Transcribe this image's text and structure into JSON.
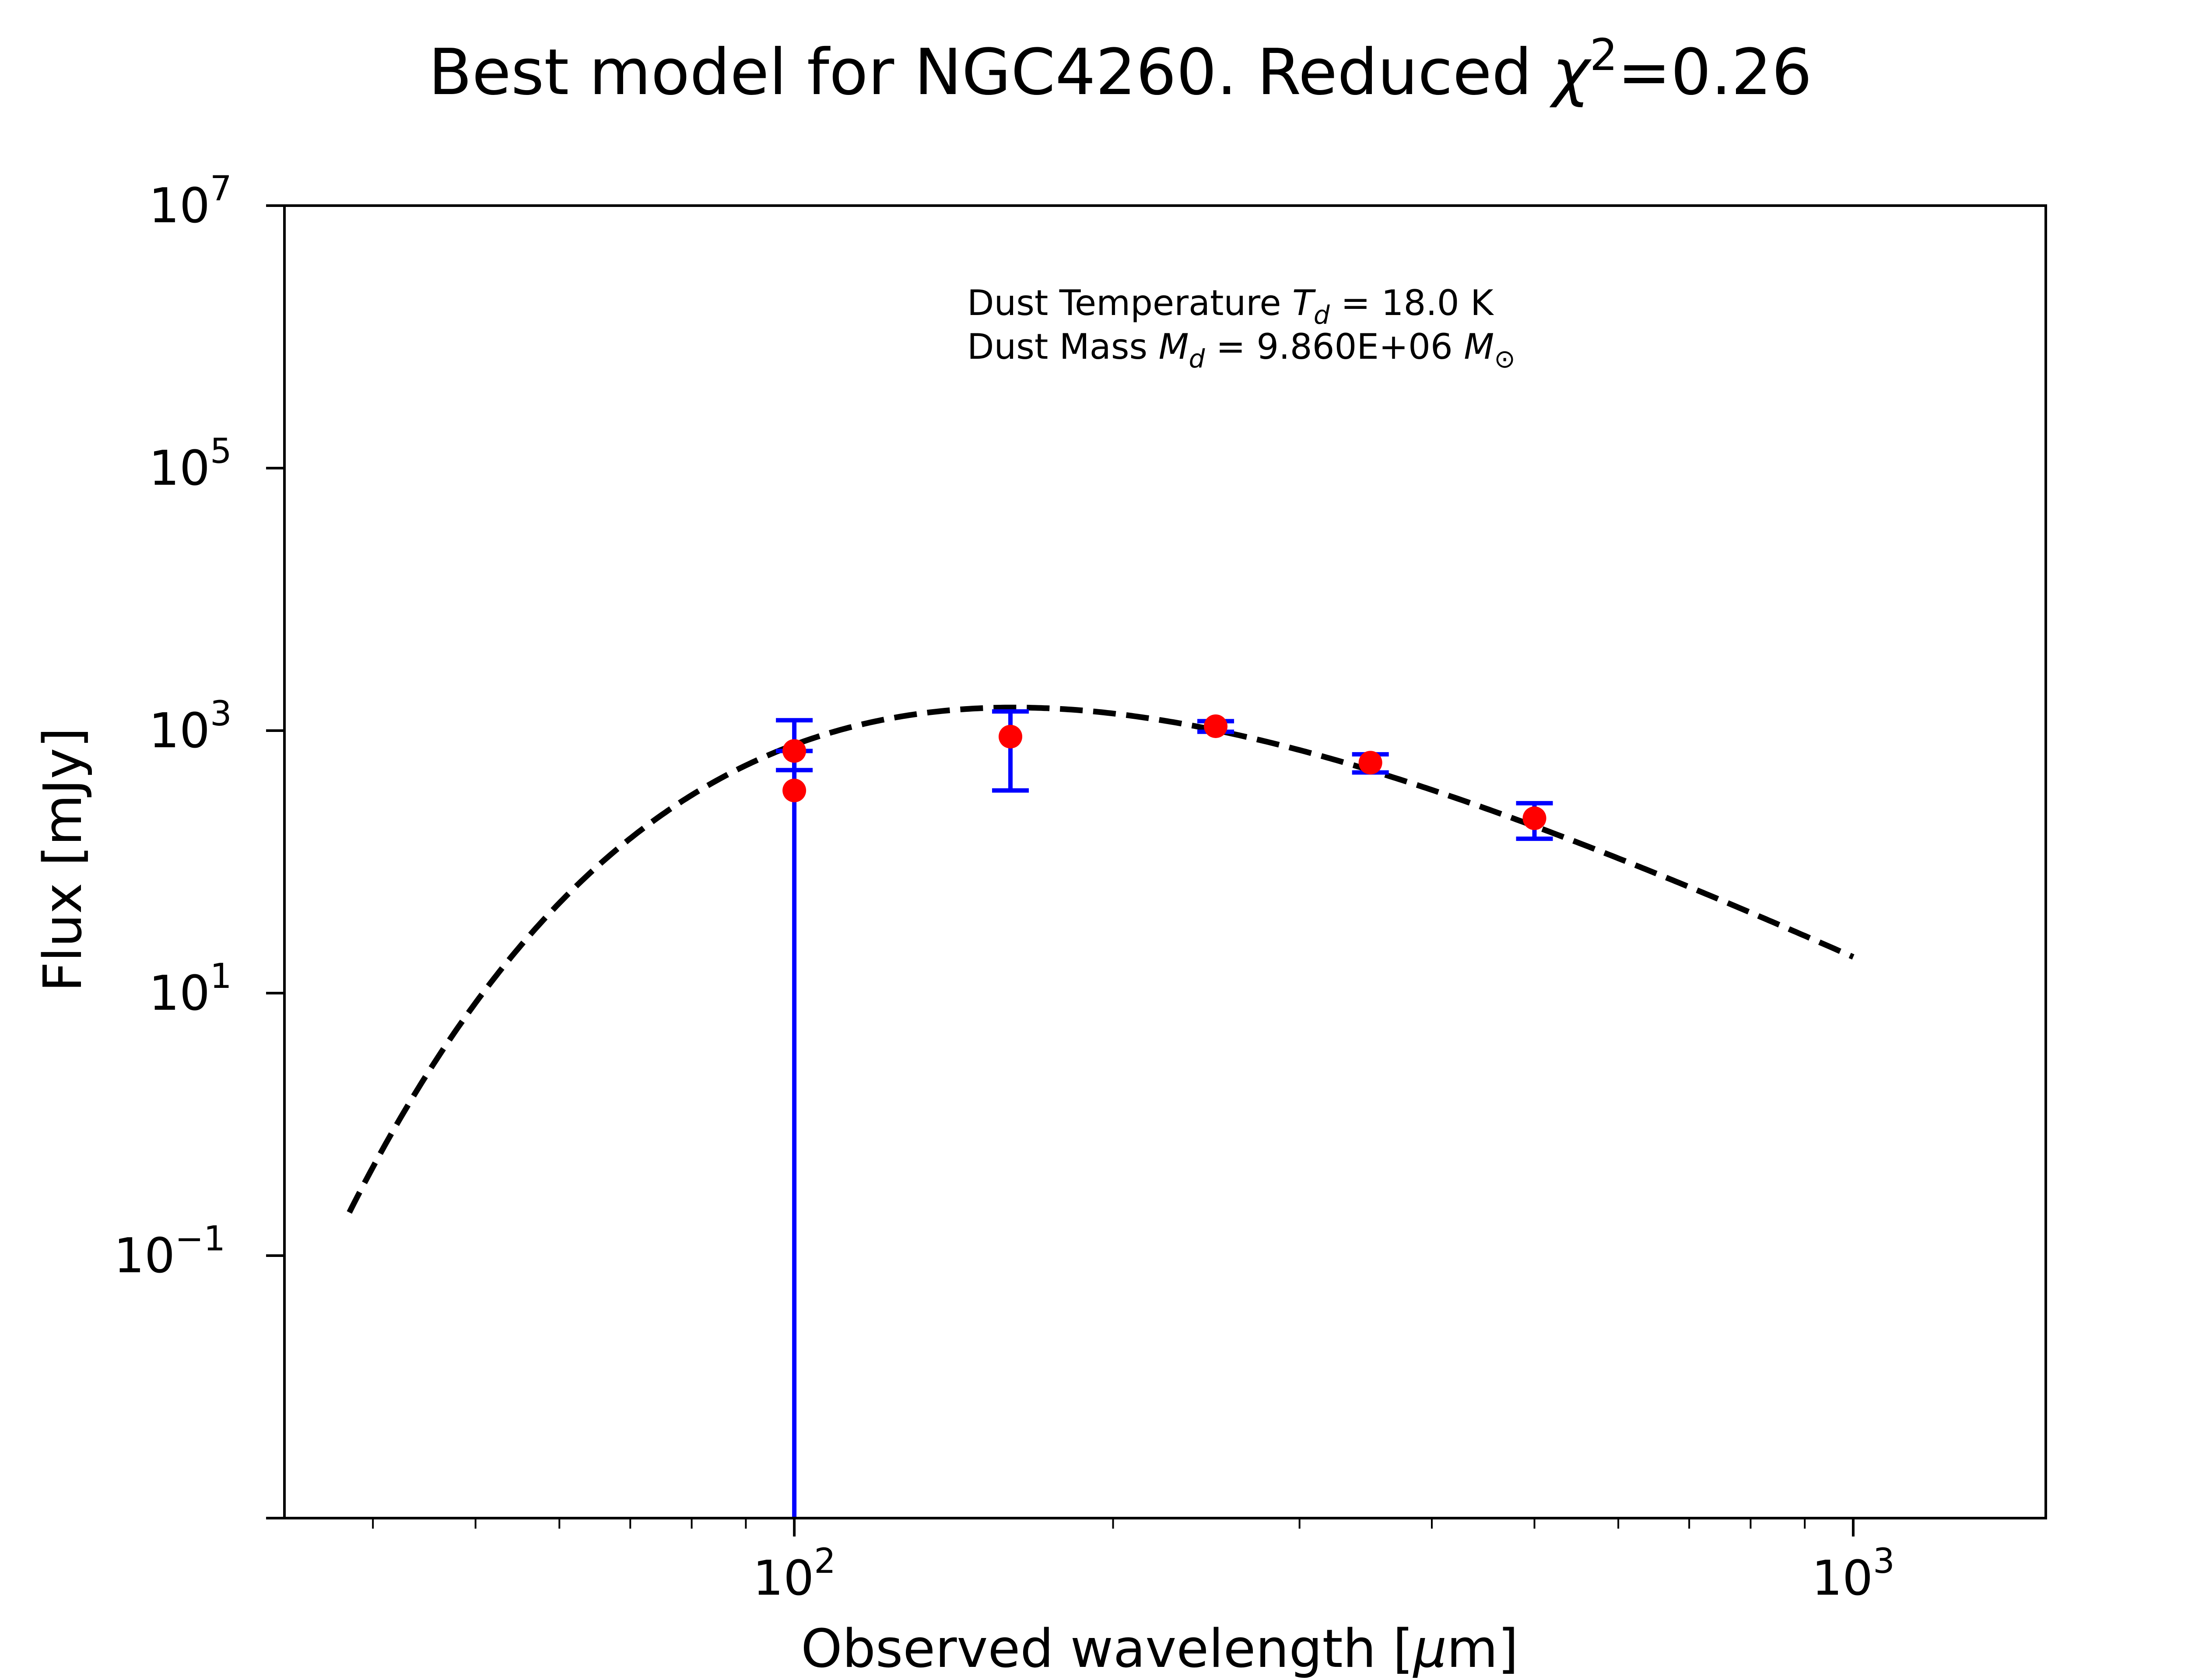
{
  "chart_data": {
    "type": "scatter",
    "title": {
      "text": "Best model for NGC4260. Reduced ",
      "symbol": "χ",
      "symbol_exponent": "2",
      "value_text": "=0.26"
    },
    "xlabel": {
      "text": "Observed wavelength [",
      "mu": "μ",
      "unit": "m]"
    },
    "ylabel": "Flux [mJy]",
    "xscale": "log",
    "yscale": "log",
    "xlim": [
      33,
      1520
    ],
    "ylim": [
      0.001,
      10000000
    ],
    "x_ticks": [
      {
        "value": 100,
        "base": "10",
        "exp": "2"
      },
      {
        "value": 1000,
        "base": "10",
        "exp": "3"
      }
    ],
    "y_ticks": [
      {
        "value": 0.1,
        "base": "10",
        "exp": "−1"
      },
      {
        "value": 10,
        "base": "10",
        "exp": "1"
      },
      {
        "value": 1000,
        "base": "10",
        "exp": "3"
      },
      {
        "value": 100000,
        "base": "10",
        "exp": "5"
      },
      {
        "value": 10000000,
        "base": "10",
        "exp": "7"
      }
    ],
    "annotation": {
      "line1_prefix": "Dust Temperature ",
      "line1_symbol": "T",
      "line1_sub": "d",
      "line1_suffix": " = 18.0 K",
      "line2_prefix": "Dust Mass ",
      "line2_symbol": "M",
      "line2_sub": "d",
      "line2_mid": " = 9.860E+06 ",
      "line2_unit_symbol": "M",
      "line2_unit_sub": "⊙"
    },
    "model": {
      "style": "dashed",
      "color": "#000000",
      "temperature_K": 18.0,
      "peak_wavelength": 170,
      "peak_flux": 1500,
      "beta": 2.0,
      "x_range": [
        38,
        1000
      ]
    },
    "observations": [
      {
        "x": 100,
        "y": 700,
        "yerr_low": 500,
        "yerr_high": 1200
      },
      {
        "x": 100,
        "y": 350,
        "yerr_low": 0.001,
        "yerr_high": 700
      },
      {
        "x": 160,
        "y": 900,
        "yerr_low": 350,
        "yerr_high": 1400
      },
      {
        "x": 250,
        "y": 1080,
        "yerr_low": 980,
        "yerr_high": 1180
      },
      {
        "x": 350,
        "y": 570,
        "yerr_low": 480,
        "yerr_high": 660
      },
      {
        "x": 500,
        "y": 215,
        "yerr_low": 150,
        "yerr_high": 280
      }
    ],
    "colors": {
      "points": "#ff0000",
      "errorbars": "#0000ff",
      "model": "#000000",
      "axes": "#000000"
    },
    "grid": false,
    "legend": "none"
  }
}
